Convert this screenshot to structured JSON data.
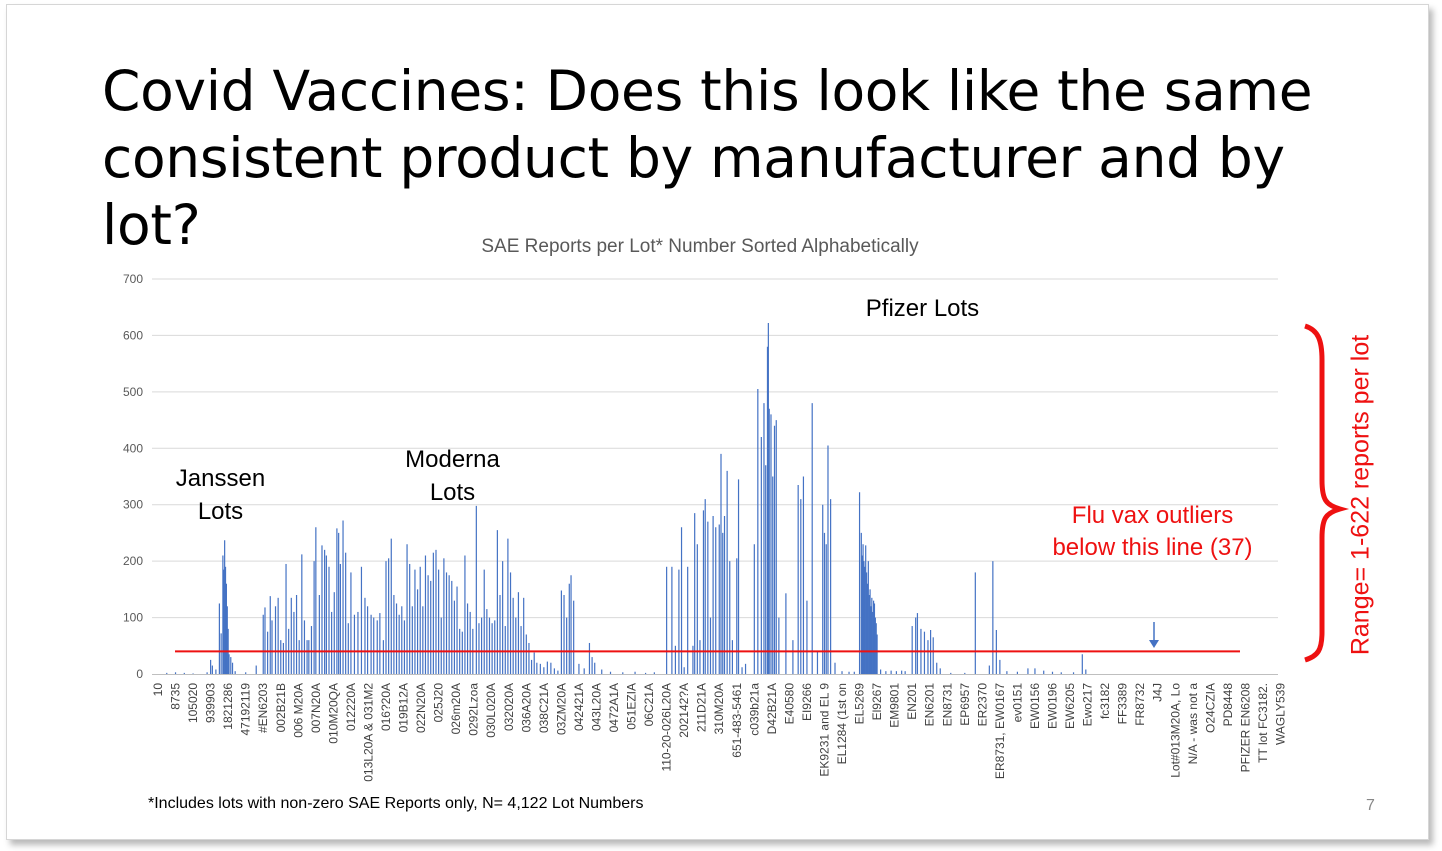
{
  "slide": {
    "title": "Covid Vaccines: Does this look like the same consistent product by manufacturer and by lot?",
    "footnote": "*Includes lots with non-zero SAE Reports only, N= 4,122 Lot Numbers",
    "page_number": "7"
  },
  "annotations": {
    "janssen": "Janssen\nLots",
    "moderna": "Moderna\nLots",
    "pfizer": "Pfizer Lots",
    "flu": "Flu vax outliers\nbelow this line (37)",
    "range": "Range= 1-622 reports per lot"
  },
  "colors": {
    "bars": "#4472c4",
    "reference_line": "#ee1111",
    "annotation_red": "#ee1111",
    "grid": "#d9d9d9",
    "axis_text": "#595959"
  },
  "chart_data": {
    "type": "bar",
    "title": "SAE Reports per Lot* Number Sorted Alphabetically",
    "xlabel": "",
    "ylabel": "",
    "ylim": [
      0,
      700
    ],
    "yticks": [
      0,
      100,
      200,
      300,
      400,
      500,
      600,
      700
    ],
    "grid": true,
    "legend": "none",
    "x_tick_labels": [
      "10",
      "8735",
      "105020",
      "939903",
      "1821286",
      "47192119",
      "#EN6203",
      "002B21B",
      "006 M20A",
      "007N20A",
      "010M20QA",
      "012220A",
      "013L20A & 031M2",
      "016?20A",
      "019B12A",
      "022N20A",
      "025J20",
      "026m20A",
      "0292Lzoa",
      "030L020A",
      "032020A",
      "036A20A",
      "038C21A",
      "03ZM20A",
      "042421A",
      "043L20A",
      "0472A1A",
      "051EZIA",
      "06C21A",
      "110-20-026L20A",
      "202142?A",
      "211D21A",
      "310M20A",
      "651-483-5461",
      "c039b21a",
      "D42B21A",
      "E40580",
      "EI9266",
      "EK9231 and EL 9",
      "EL1284 (1st on",
      "EL5269",
      "El9267",
      "EM9801",
      "EN201",
      "EN6201",
      "EN8731",
      "EP6957",
      "ER2370",
      "ER8731, EW0167",
      "ev0151",
      "EW0156",
      "EW0196",
      "EW6205",
      "Ewo217",
      "fc3182",
      "FF3389",
      "FR8732",
      "J4J",
      "Lot#013M20A, Lo",
      "N/A - was not a",
      "O24CZIA",
      "PD8448",
      "PFIZER EN6208",
      "TT lot FC3182.",
      "WAGLY539"
    ],
    "reference_line": 40,
    "range": [
      1,
      622
    ],
    "lot_count": 4122,
    "bars": [
      {
        "x": 0.5,
        "value": 2
      },
      {
        "x": 1.0,
        "value": 3
      },
      {
        "x": 1.5,
        "value": 2
      },
      {
        "x": 2.0,
        "value": 1
      },
      {
        "x": 2.8,
        "value": 3
      },
      {
        "x": 3.0,
        "value": 25
      },
      {
        "x": 3.1,
        "value": 15
      },
      {
        "x": 3.3,
        "value": 8
      },
      {
        "x": 3.5,
        "value": 125
      },
      {
        "x": 3.6,
        "value": 72
      },
      {
        "x": 3.7,
        "value": 210
      },
      {
        "x": 3.75,
        "value": 185
      },
      {
        "x": 3.8,
        "value": 237
      },
      {
        "x": 3.85,
        "value": 190
      },
      {
        "x": 3.9,
        "value": 160
      },
      {
        "x": 3.95,
        "value": 120
      },
      {
        "x": 4.0,
        "value": 80
      },
      {
        "x": 4.05,
        "value": 35
      },
      {
        "x": 4.15,
        "value": 30
      },
      {
        "x": 4.25,
        "value": 20
      },
      {
        "x": 4.4,
        "value": 5
      },
      {
        "x": 5.0,
        "value": 3
      },
      {
        "x": 5.6,
        "value": 15
      },
      {
        "x": 6.0,
        "value": 105
      },
      {
        "x": 6.1,
        "value": 118
      },
      {
        "x": 6.25,
        "value": 75
      },
      {
        "x": 6.4,
        "value": 138
      },
      {
        "x": 6.5,
        "value": 95
      },
      {
        "x": 6.7,
        "value": 120
      },
      {
        "x": 6.85,
        "value": 135
      },
      {
        "x": 7.0,
        "value": 60
      },
      {
        "x": 7.15,
        "value": 55
      },
      {
        "x": 7.3,
        "value": 195
      },
      {
        "x": 7.45,
        "value": 80
      },
      {
        "x": 7.6,
        "value": 135
      },
      {
        "x": 7.75,
        "value": 110
      },
      {
        "x": 7.9,
        "value": 140
      },
      {
        "x": 8.05,
        "value": 60
      },
      {
        "x": 8.2,
        "value": 212
      },
      {
        "x": 8.35,
        "value": 95
      },
      {
        "x": 8.5,
        "value": 60
      },
      {
        "x": 8.6,
        "value": 60
      },
      {
        "x": 8.75,
        "value": 85
      },
      {
        "x": 8.9,
        "value": 200
      },
      {
        "x": 9.0,
        "value": 260
      },
      {
        "x": 9.2,
        "value": 140
      },
      {
        "x": 9.35,
        "value": 228
      },
      {
        "x": 9.5,
        "value": 220
      },
      {
        "x": 9.6,
        "value": 210
      },
      {
        "x": 9.75,
        "value": 190
      },
      {
        "x": 9.9,
        "value": 110
      },
      {
        "x": 10.05,
        "value": 145
      },
      {
        "x": 10.2,
        "value": 258
      },
      {
        "x": 10.3,
        "value": 250
      },
      {
        "x": 10.4,
        "value": 195
      },
      {
        "x": 10.55,
        "value": 272
      },
      {
        "x": 10.7,
        "value": 215
      },
      {
        "x": 10.85,
        "value": 90
      },
      {
        "x": 11.0,
        "value": 180
      },
      {
        "x": 11.2,
        "value": 105
      },
      {
        "x": 11.4,
        "value": 110
      },
      {
        "x": 11.6,
        "value": 190
      },
      {
        "x": 11.8,
        "value": 135
      },
      {
        "x": 11.95,
        "value": 120
      },
      {
        "x": 12.15,
        "value": 105
      },
      {
        "x": 12.3,
        "value": 100
      },
      {
        "x": 12.5,
        "value": 95
      },
      {
        "x": 12.65,
        "value": 108
      },
      {
        "x": 12.85,
        "value": 60
      },
      {
        "x": 13.0,
        "value": 200
      },
      {
        "x": 13.15,
        "value": 205
      },
      {
        "x": 13.3,
        "value": 240
      },
      {
        "x": 13.45,
        "value": 140
      },
      {
        "x": 13.6,
        "value": 125
      },
      {
        "x": 13.75,
        "value": 105
      },
      {
        "x": 13.9,
        "value": 120
      },
      {
        "x": 14.05,
        "value": 95
      },
      {
        "x": 14.2,
        "value": 230
      },
      {
        "x": 14.35,
        "value": 195
      },
      {
        "x": 14.5,
        "value": 120
      },
      {
        "x": 14.65,
        "value": 185
      },
      {
        "x": 14.8,
        "value": 150
      },
      {
        "x": 14.95,
        "value": 190
      },
      {
        "x": 15.1,
        "value": 120
      },
      {
        "x": 15.25,
        "value": 210
      },
      {
        "x": 15.4,
        "value": 175
      },
      {
        "x": 15.55,
        "value": 165
      },
      {
        "x": 15.7,
        "value": 215
      },
      {
        "x": 15.85,
        "value": 220
      },
      {
        "x": 16.0,
        "value": 185
      },
      {
        "x": 16.15,
        "value": 100
      },
      {
        "x": 16.3,
        "value": 205
      },
      {
        "x": 16.45,
        "value": 180
      },
      {
        "x": 16.6,
        "value": 175
      },
      {
        "x": 16.75,
        "value": 165
      },
      {
        "x": 16.9,
        "value": 130
      },
      {
        "x": 17.05,
        "value": 155
      },
      {
        "x": 17.2,
        "value": 80
      },
      {
        "x": 17.35,
        "value": 75
      },
      {
        "x": 17.5,
        "value": 210
      },
      {
        "x": 17.65,
        "value": 125
      },
      {
        "x": 17.8,
        "value": 110
      },
      {
        "x": 17.95,
        "value": 80
      },
      {
        "x": 18.15,
        "value": 298
      },
      {
        "x": 18.3,
        "value": 90
      },
      {
        "x": 18.45,
        "value": 100
      },
      {
        "x": 18.6,
        "value": 185
      },
      {
        "x": 18.75,
        "value": 115
      },
      {
        "x": 18.9,
        "value": 100
      },
      {
        "x": 19.05,
        "value": 90
      },
      {
        "x": 19.2,
        "value": 95
      },
      {
        "x": 19.35,
        "value": 255
      },
      {
        "x": 19.5,
        "value": 140
      },
      {
        "x": 19.65,
        "value": 200
      },
      {
        "x": 19.8,
        "value": 85
      },
      {
        "x": 19.95,
        "value": 240
      },
      {
        "x": 20.1,
        "value": 180
      },
      {
        "x": 20.25,
        "value": 135
      },
      {
        "x": 20.4,
        "value": 100
      },
      {
        "x": 20.55,
        "value": 145
      },
      {
        "x": 20.7,
        "value": 85
      },
      {
        "x": 20.85,
        "value": 135
      },
      {
        "x": 21.0,
        "value": 70
      },
      {
        "x": 21.15,
        "value": 55
      },
      {
        "x": 21.3,
        "value": 25
      },
      {
        "x": 21.45,
        "value": 38
      },
      {
        "x": 21.6,
        "value": 20
      },
      {
        "x": 21.8,
        "value": 18
      },
      {
        "x": 22.0,
        "value": 12
      },
      {
        "x": 22.2,
        "value": 22
      },
      {
        "x": 22.4,
        "value": 20
      },
      {
        "x": 22.6,
        "value": 10
      },
      {
        "x": 22.8,
        "value": 6
      },
      {
        "x": 23.0,
        "value": 148
      },
      {
        "x": 23.15,
        "value": 140
      },
      {
        "x": 23.3,
        "value": 100
      },
      {
        "x": 23.45,
        "value": 160
      },
      {
        "x": 23.55,
        "value": 175
      },
      {
        "x": 23.7,
        "value": 130
      },
      {
        "x": 24.0,
        "value": 18
      },
      {
        "x": 24.3,
        "value": 10
      },
      {
        "x": 24.6,
        "value": 55
      },
      {
        "x": 24.75,
        "value": 30
      },
      {
        "x": 24.9,
        "value": 20
      },
      {
        "x": 25.3,
        "value": 8
      },
      {
        "x": 25.8,
        "value": 4
      },
      {
        "x": 26.5,
        "value": 3
      },
      {
        "x": 27.2,
        "value": 4
      },
      {
        "x": 27.8,
        "value": 2
      },
      {
        "x": 28.3,
        "value": 3
      },
      {
        "x": 29.0,
        "value": 190
      },
      {
        "x": 29.3,
        "value": 190
      },
      {
        "x": 29.5,
        "value": 50
      },
      {
        "x": 29.7,
        "value": 185
      },
      {
        "x": 29.85,
        "value": 260
      },
      {
        "x": 30.0,
        "value": 12
      },
      {
        "x": 30.2,
        "value": 190
      },
      {
        "x": 30.5,
        "value": 50
      },
      {
        "x": 30.6,
        "value": 285
      },
      {
        "x": 30.75,
        "value": 230
      },
      {
        "x": 30.9,
        "value": 60
      },
      {
        "x": 31.1,
        "value": 290
      },
      {
        "x": 31.2,
        "value": 310
      },
      {
        "x": 31.35,
        "value": 270
      },
      {
        "x": 31.5,
        "value": 100
      },
      {
        "x": 31.65,
        "value": 280
      },
      {
        "x": 31.8,
        "value": 260
      },
      {
        "x": 32.0,
        "value": 265
      },
      {
        "x": 32.1,
        "value": 390
      },
      {
        "x": 32.2,
        "value": 250
      },
      {
        "x": 32.3,
        "value": 280
      },
      {
        "x": 32.45,
        "value": 360
      },
      {
        "x": 32.6,
        "value": 200
      },
      {
        "x": 32.75,
        "value": 60
      },
      {
        "x": 33.0,
        "value": 205
      },
      {
        "x": 33.1,
        "value": 345
      },
      {
        "x": 33.3,
        "value": 12
      },
      {
        "x": 33.5,
        "value": 18
      },
      {
        "x": 34.0,
        "value": 230
      },
      {
        "x": 34.2,
        "value": 505
      },
      {
        "x": 34.4,
        "value": 420
      },
      {
        "x": 34.55,
        "value": 480
      },
      {
        "x": 34.65,
        "value": 370
      },
      {
        "x": 34.75,
        "value": 580
      },
      {
        "x": 34.8,
        "value": 622
      },
      {
        "x": 34.85,
        "value": 470
      },
      {
        "x": 34.95,
        "value": 460
      },
      {
        "x": 35.05,
        "value": 350
      },
      {
        "x": 35.15,
        "value": 440
      },
      {
        "x": 35.25,
        "value": 450
      },
      {
        "x": 35.4,
        "value": 100
      },
      {
        "x": 35.8,
        "value": 143
      },
      {
        "x": 36.2,
        "value": 60
      },
      {
        "x": 36.5,
        "value": 335
      },
      {
        "x": 36.65,
        "value": 310
      },
      {
        "x": 36.8,
        "value": 350
      },
      {
        "x": 37.0,
        "value": 130
      },
      {
        "x": 37.3,
        "value": 480
      },
      {
        "x": 37.6,
        "value": 40
      },
      {
        "x": 37.9,
        "value": 300
      },
      {
        "x": 38.0,
        "value": 250
      },
      {
        "x": 38.1,
        "value": 230
      },
      {
        "x": 38.2,
        "value": 405
      },
      {
        "x": 38.35,
        "value": 310
      },
      {
        "x": 38.6,
        "value": 20
      },
      {
        "x": 39.0,
        "value": 5
      },
      {
        "x": 39.4,
        "value": 4
      },
      {
        "x": 39.7,
        "value": 4
      },
      {
        "x": 40.0,
        "value": 322
      },
      {
        "x": 40.1,
        "value": 250
      },
      {
        "x": 40.15,
        "value": 210
      },
      {
        "x": 40.2,
        "value": 230
      },
      {
        "x": 40.25,
        "value": 200
      },
      {
        "x": 40.3,
        "value": 190
      },
      {
        "x": 40.35,
        "value": 228
      },
      {
        "x": 40.4,
        "value": 180
      },
      {
        "x": 40.45,
        "value": 160
      },
      {
        "x": 40.5,
        "value": 200
      },
      {
        "x": 40.55,
        "value": 140
      },
      {
        "x": 40.6,
        "value": 150
      },
      {
        "x": 40.65,
        "value": 120
      },
      {
        "x": 40.7,
        "value": 135
      },
      {
        "x": 40.75,
        "value": 110
      },
      {
        "x": 40.8,
        "value": 130
      },
      {
        "x": 40.85,
        "value": 125
      },
      {
        "x": 40.9,
        "value": 100
      },
      {
        "x": 40.95,
        "value": 90
      },
      {
        "x": 41.0,
        "value": 70
      },
      {
        "x": 41.2,
        "value": 8
      },
      {
        "x": 41.5,
        "value": 5
      },
      {
        "x": 41.8,
        "value": 6
      },
      {
        "x": 42.1,
        "value": 5
      },
      {
        "x": 42.4,
        "value": 6
      },
      {
        "x": 42.6,
        "value": 5
      },
      {
        "x": 43.0,
        "value": 85
      },
      {
        "x": 43.2,
        "value": 100
      },
      {
        "x": 43.3,
        "value": 108
      },
      {
        "x": 43.5,
        "value": 80
      },
      {
        "x": 43.7,
        "value": 75
      },
      {
        "x": 43.9,
        "value": 60
      },
      {
        "x": 44.05,
        "value": 78
      },
      {
        "x": 44.2,
        "value": 65
      },
      {
        "x": 44.4,
        "value": 20
      },
      {
        "x": 44.6,
        "value": 10
      },
      {
        "x": 45.2,
        "value": 2
      },
      {
        "x": 46.0,
        "value": 2
      },
      {
        "x": 46.6,
        "value": 180
      },
      {
        "x": 47.4,
        "value": 15
      },
      {
        "x": 47.6,
        "value": 200
      },
      {
        "x": 47.8,
        "value": 78
      },
      {
        "x": 48.0,
        "value": 25
      },
      {
        "x": 48.4,
        "value": 5
      },
      {
        "x": 49.0,
        "value": 4
      },
      {
        "x": 49.6,
        "value": 10
      },
      {
        "x": 50.0,
        "value": 10
      },
      {
        "x": 50.5,
        "value": 6
      },
      {
        "x": 51.0,
        "value": 4
      },
      {
        "x": 51.5,
        "value": 3
      },
      {
        "x": 52.2,
        "value": 3
      },
      {
        "x": 52.7,
        "value": 35
      },
      {
        "x": 52.9,
        "value": 8
      }
    ]
  }
}
